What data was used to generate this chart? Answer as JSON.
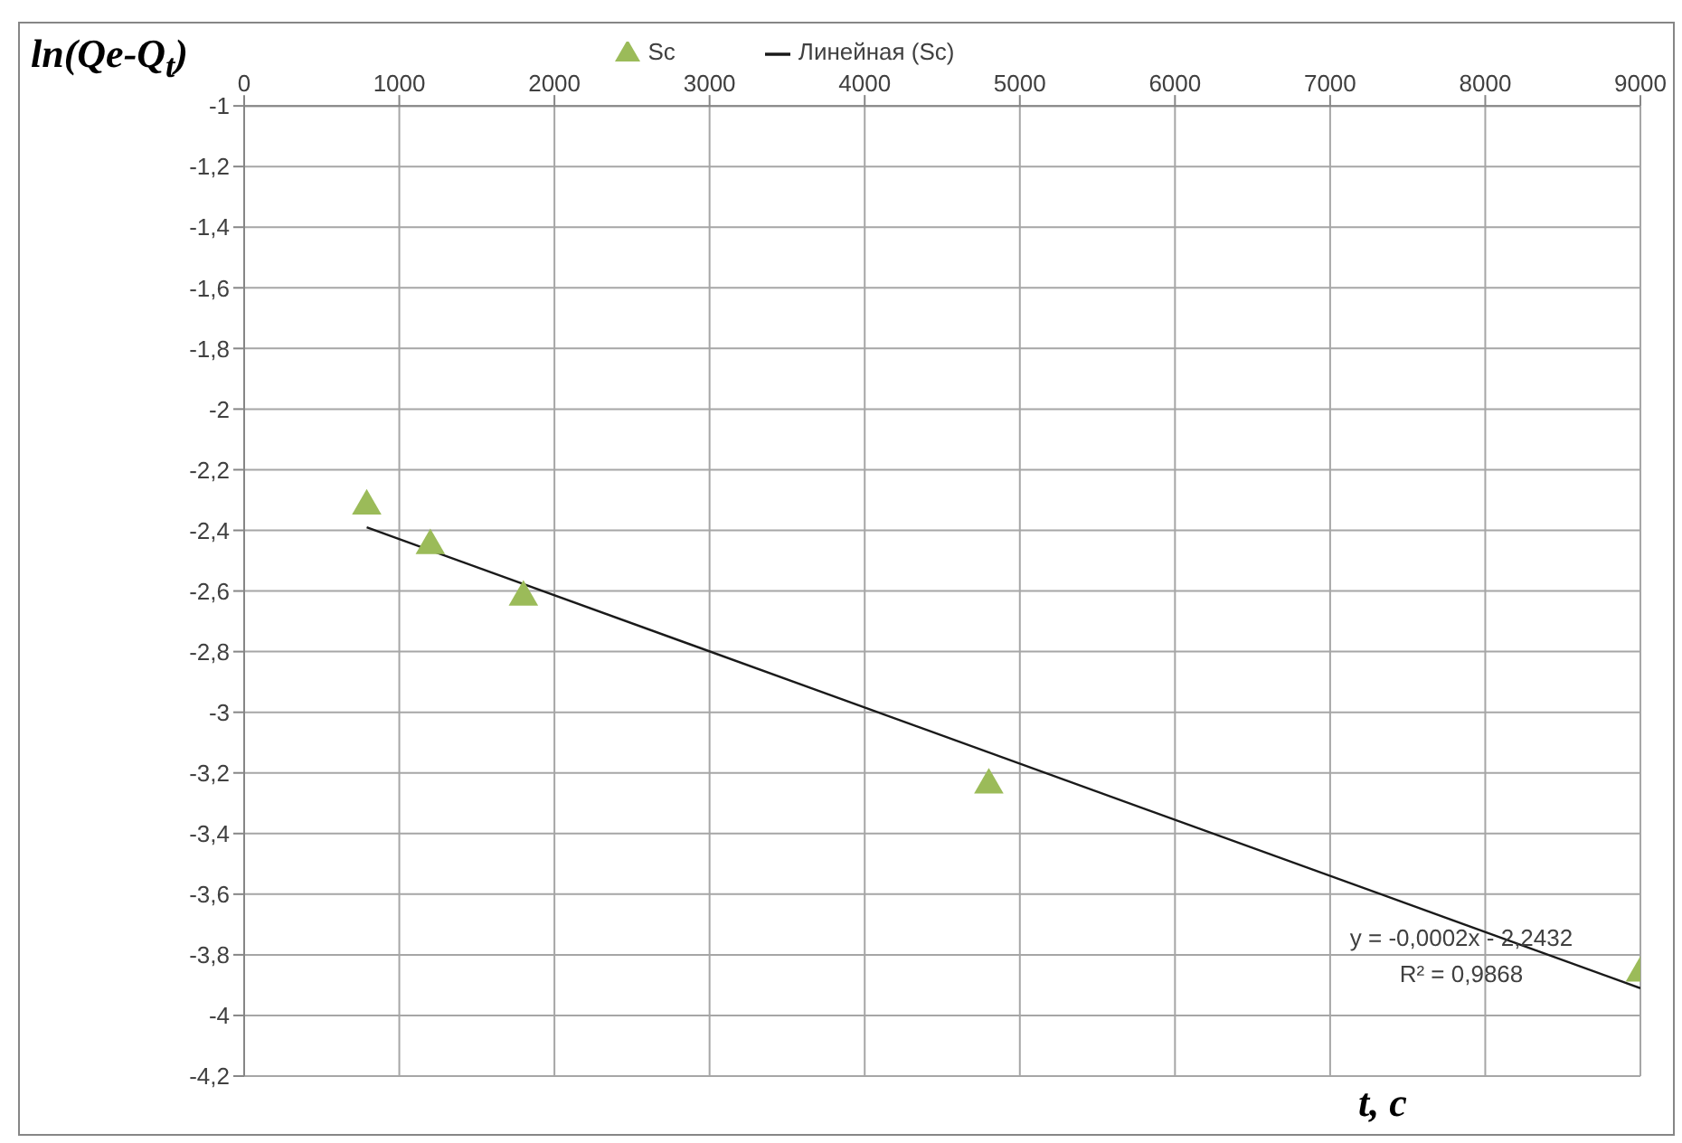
{
  "chart_data": {
    "type": "scatter",
    "xlabel": "t, с",
    "ylabel": "ln(Qe-Q$_{t}$)",
    "xlim": [
      0,
      9000
    ],
    "xticks": [
      0,
      1000,
      2000,
      3000,
      4000,
      5000,
      6000,
      7000,
      8000,
      9000
    ],
    "ylim": [
      -4.2,
      -1
    ],
    "yticks": [
      {
        "value": -4.2,
        "label": "-4,2"
      },
      -4,
      {
        "value": -3.8,
        "label": "-3,8"
      },
      {
        "value": -3.6,
        "label": "-3,6"
      },
      {
        "value": -3.4,
        "label": "-3,4"
      },
      {
        "value": -3.2,
        "label": "-3,2"
      },
      -3,
      {
        "value": -2.8,
        "label": "-2,8"
      },
      {
        "value": -2.6,
        "label": "-2,6"
      },
      {
        "value": -2.4,
        "label": "-2,4"
      },
      {
        "value": -2.2,
        "label": "-2,2"
      },
      -2,
      {
        "value": -1.8,
        "label": "-1,8"
      },
      {
        "value": -1.6,
        "label": "-1,6"
      },
      {
        "value": -1.4,
        "label": "-1,4"
      },
      {
        "value": -1.2,
        "label": "-1,2"
      },
      -1
    ],
    "series": [
      {
        "name": "Sc",
        "color": "#9bbb59",
        "marker": "triangle",
        "x": [
          790,
          1200,
          1800,
          4800,
          9000
        ],
        "values": [
          -2.32,
          -2.45,
          -2.62,
          -3.24,
          -3.86
        ]
      },
      {
        "name": "Линейная (Sc)",
        "type": "line",
        "color": "#1a1a1a",
        "line_style": "solid",
        "x": [
          790,
          9000
        ],
        "values": [
          -2.39,
          -3.91
        ]
      }
    ],
    "annotations": [
      "y = -0,0002x - 2,2432",
      "R² = 0,9868"
    ],
    "grid": true,
    "legend": "top"
  }
}
